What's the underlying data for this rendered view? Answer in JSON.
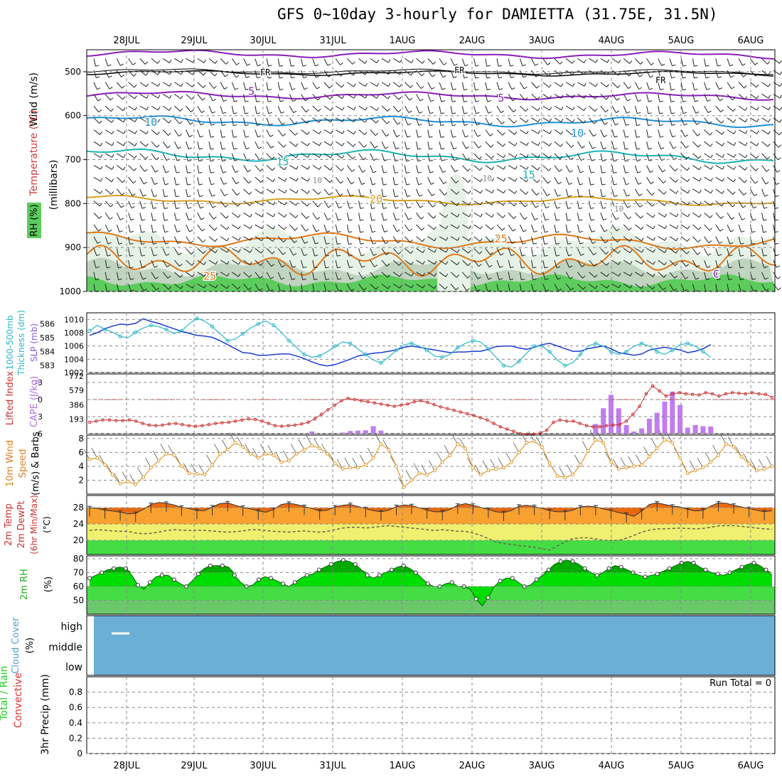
{
  "title": "GFS 0~10day 3-hourly for DAMIETTA (31.75E, 31.5N)",
  "date_labels": [
    "28JUL",
    "29JUL",
    "30JUL",
    "31JUL",
    "1AUG",
    "2AUG",
    "3AUG",
    "4AUG",
    "5AUG",
    "6AUG"
  ],
  "colors": {
    "fr_line": "#000000",
    "t5": "#8a1fb8",
    "t10": "#1e90d6",
    "t15": "#19b3b3",
    "t20": "#d9a020",
    "t25": "#e07818",
    "rh_light": "#e6f2e6",
    "rh_mid": "#c0d4c0",
    "rh_green": "#5ccc5c",
    "slp": "#1c3cd0",
    "thickness": "#2ab8c8",
    "lifted": "#cc3333",
    "cape": "#c07cf0",
    "wind": "#e09a30",
    "temp_fill": "#e86a10",
    "temp_band": "#f8a030",
    "dew_band": "#f0f070",
    "green_band": "#44dd44",
    "rh2m": "#00dd00",
    "cloud": "#6baed6"
  },
  "panels": {
    "upper_air": {
      "ylabels": [
        "Wind (m/s)",
        "Temperature (°C)",
        "RH (%)",
        "(millibars)"
      ],
      "yticks": [
        500,
        600,
        700,
        800,
        900,
        1000
      ],
      "ylim": [
        450,
        1000
      ],
      "contour_labels": [
        {
          "text": "FR",
          "date_idx": 2.0,
          "p": 500
        },
        {
          "text": "FR",
          "date_idx": 4.8,
          "p": 495
        },
        {
          "text": "FR",
          "date_idx": 7.7,
          "p": 518
        },
        {
          "text": "5",
          "date_idx": 1.8,
          "p": 545
        },
        {
          "text": "5",
          "date_idx": 5.4,
          "p": 560
        },
        {
          "text": "10",
          "date_idx": 0.35,
          "p": 615
        },
        {
          "text": "10",
          "date_idx": 6.5,
          "p": 640
        },
        {
          "text": "15",
          "date_idx": 2.25,
          "p": 705
        },
        {
          "text": "15",
          "date_idx": 5.8,
          "p": 735
        },
        {
          "text": "20",
          "date_idx": 3.6,
          "p": 790
        },
        {
          "text": "25",
          "date_idx": 5.4,
          "p": 880
        },
        {
          "text": "25",
          "date_idx": 1.2,
          "p": 965
        },
        {
          "text": "10",
          "date_idx": 2.75,
          "p": 745
        },
        {
          "text": "10",
          "date_idx": 5.2,
          "p": 740
        },
        {
          "text": "10",
          "date_idx": 7.1,
          "p": 810
        },
        {
          "text": "C",
          "date_idx": 8.5,
          "p": 960
        }
      ]
    },
    "slp": {
      "ylabels": [
        "1000-500mb",
        "Thickness (dm)",
        "SLP (mb)"
      ],
      "slp_ticks": [
        1002,
        1004,
        1006,
        1008,
        1010
      ],
      "thk_ticks": [
        583,
        584,
        585,
        586
      ],
      "slp_range": [
        1002,
        1011
      ],
      "thk_range": [
        582.5,
        586.8
      ]
    },
    "cape": {
      "ylabels": [
        "Lifted Index",
        "CAPE (J/kg)"
      ],
      "li_ticks": [
        "-3",
        "0",
        "3",
        "6"
      ],
      "cape_ticks": [
        "772",
        "579",
        "386",
        "193"
      ]
    },
    "wind": {
      "ylabels": [
        "10m Wind",
        "Speed",
        "(m/s) & Barbs"
      ],
      "yticks": [
        2,
        4,
        6,
        8
      ],
      "ylim": [
        0,
        8.5
      ]
    },
    "temp": {
      "ylabels": [
        "2m Temp",
        "2m DewPt",
        "(6hr Min/Max)",
        "(°C)"
      ],
      "yticks": [
        20,
        24,
        28
      ],
      "ylim": [
        16.5,
        31
      ]
    },
    "rh": {
      "ylabels": [
        "2m RH",
        "(%)"
      ],
      "yticks": [
        50,
        60,
        70,
        80
      ],
      "ylim": [
        40,
        82
      ]
    },
    "cloud": {
      "ylabels": [
        "Cloud Cover",
        "(%)"
      ],
      "levels": [
        "high",
        "middle",
        "low"
      ]
    },
    "precip": {
      "ylabels": [
        "Total / Rain",
        "Convective",
        "3hr Precip (mm)"
      ],
      "yticks": [
        "0",
        "0.2",
        "0.4",
        "0.6",
        "0.8"
      ],
      "run_total": "Run Total = 0"
    }
  },
  "chart_data": [
    {
      "type": "line",
      "title": "1000-500mb Thickness (dm) / SLP (mb)",
      "x_start": "27JUL 12Z",
      "x_step_hours": 3,
      "series": [
        {
          "name": "SLP (mb)",
          "values": [
            1007.6,
            1008.0,
            1008.6,
            1009.0,
            1009.3,
            1009.2,
            1009.4,
            1010.1,
            1009.7,
            1009.4,
            1009.0,
            1008.6,
            1008.2,
            1007.9,
            1007.6,
            1007.5,
            1007.3,
            1006.8,
            1006.2,
            1005.6,
            1005.0,
            1004.9,
            1004.6,
            1004.6,
            1004.7,
            1004.8,
            1004.8,
            1004.5,
            1004.1,
            1003.6,
            1003.2,
            1003.0,
            1003.2,
            1003.6,
            1004.0,
            1004.5,
            1004.7,
            1004.9,
            1005.0,
            1005.2,
            1005.4,
            1005.8,
            1006.0,
            1005.8,
            1005.6,
            1005.4,
            1005.2,
            1005.0,
            1005.1,
            1005.1,
            1005.2,
            1005.2,
            1005.5,
            1005.9,
            1006.0,
            1006.0,
            1005.7,
            1005.5,
            1005.8,
            1006.2,
            1006.4,
            1006.0,
            1005.6,
            1005.2,
            1005.2,
            1005.6,
            1005.8,
            1006.0,
            1005.6,
            1005.0,
            1004.8,
            1004.6,
            1004.8,
            1005.4,
            1005.6,
            1005.8,
            1005.6,
            1005.4,
            1005.0,
            1005.2,
            1005.6,
            1006.2
          ]
        },
        {
          "name": "1000-500mb Thickness (dm)",
          "values": [
            585.5,
            585.9,
            585.6,
            585.4,
            585.1,
            585.0,
            585.4,
            585.7,
            585.9,
            585.8,
            585.6,
            585.3,
            585.5,
            586.0,
            586.4,
            586.2,
            585.8,
            585.3,
            584.8,
            584.9,
            585.3,
            585.7,
            586.0,
            586.2,
            585.9,
            585.4,
            584.8,
            584.3,
            583.8,
            583.6,
            583.7,
            584.0,
            584.4,
            584.7,
            584.6,
            584.2,
            583.8,
            583.4,
            583.2,
            583.6,
            584.1,
            584.5,
            584.6,
            584.4,
            584.1,
            583.7,
            583.6,
            583.8,
            584.3,
            584.6,
            584.8,
            584.7,
            584.2,
            583.6,
            583.0,
            582.9,
            583.3,
            583.9,
            584.4,
            584.4,
            584.0,
            583.4,
            583.0,
            583.2,
            583.8,
            584.4,
            584.6,
            584.4,
            584.0,
            583.8,
            584.0,
            584.4,
            584.6,
            584.4,
            584.0,
            583.8,
            584.1,
            584.5,
            584.6,
            584.4,
            584.0,
            583.6
          ]
        }
      ]
    },
    {
      "type": "bar",
      "title": "Lifted Index / CAPE (J/kg)",
      "x_start": "27JUL 12Z",
      "x_step_hours": 3,
      "series": [
        {
          "name": "Lifted Index",
          "values": [
            4.0,
            3.8,
            3.6,
            3.6,
            3.7,
            3.7,
            3.6,
            3.8,
            4.2,
            4.5,
            4.6,
            4.5,
            4.3,
            4.2,
            4.4,
            4.6,
            4.7,
            4.6,
            4.4,
            4.2,
            4.1,
            4.0,
            3.8,
            3.6,
            3.4,
            3.5,
            3.8,
            4.2,
            4.6,
            4.7,
            4.6,
            4.5,
            4.3,
            4.0,
            3.4,
            2.6,
            1.8,
            1.0,
            0.2,
            -0.2,
            0.0,
            0.2,
            0.4,
            0.6,
            0.8,
            1.0,
            1.2,
            1.0,
            0.8,
            0.4,
            0.2,
            0.5,
            0.9,
            1.3,
            1.6,
            1.9,
            2.2,
            2.5,
            2.8,
            3.2,
            3.6,
            4.2,
            4.8,
            5.2,
            5.6,
            6.0,
            6.1,
            6.1,
            5.9,
            5.4,
            4.0,
            3.6,
            3.8,
            3.8,
            4.2,
            4.6,
            4.8,
            4.8,
            4.6,
            4.5,
            4.4,
            3.8,
            2.6,
            1.2,
            -1.0,
            -2.4,
            -1.5,
            -0.6,
            -1.0,
            -1.2,
            -1.0,
            -0.9,
            -0.8,
            -1.2,
            -1.0,
            -0.6,
            -1.0,
            -1.2,
            -1.1,
            -1.0,
            -1.2,
            -1.0,
            -0.9,
            -0.4
          ]
        },
        {
          "name": "CAPE (J/kg)",
          "bars": [
            {
              "idx": 29,
              "value": 30
            },
            {
              "idx": 33,
              "value": 15
            },
            {
              "idx": 34,
              "value": 35
            },
            {
              "idx": 35,
              "value": 40
            },
            {
              "idx": 36,
              "value": 45
            },
            {
              "idx": 37,
              "value": 100
            },
            {
              "idx": 38,
              "value": 40
            },
            {
              "idx": 66,
              "value": 130
            },
            {
              "idx": 67,
              "value": 340
            },
            {
              "idx": 68,
              "value": 520
            },
            {
              "idx": 69,
              "value": 340
            },
            {
              "idx": 70,
              "value": 115
            },
            {
              "idx": 71,
              "value": 30
            },
            {
              "idx": 72,
              "value": 70
            },
            {
              "idx": 73,
              "value": 200
            },
            {
              "idx": 74,
              "value": 280
            },
            {
              "idx": 75,
              "value": 430
            },
            {
              "idx": 76,
              "value": 565
            },
            {
              "idx": 77,
              "value": 385
            },
            {
              "idx": 78,
              "value": 80
            },
            {
              "idx": 79,
              "value": 115
            },
            {
              "idx": 80,
              "value": 100
            },
            {
              "idx": 81,
              "value": 95
            }
          ]
        }
      ]
    },
    {
      "type": "line",
      "title": "10m Wind Speed (m/s)",
      "x_start": "27JUL 12Z",
      "x_step_hours": 3,
      "series": [
        {
          "name": "Speed",
          "values": [
            5.0,
            5.2,
            4.2,
            2.8,
            1.5,
            1.8,
            1.4,
            2.4,
            3.8,
            4.8,
            5.8,
            5.6,
            4.0,
            3.0,
            2.9,
            2.8,
            4.2,
            5.8,
            6.4,
            7.4,
            6.8,
            5.8,
            5.2,
            5.8,
            5.6,
            4.6,
            4.8,
            5.8,
            6.4,
            7.0,
            6.6,
            5.8,
            4.4,
            3.6,
            3.8,
            3.8,
            4.2,
            5.2,
            7.2,
            6.4,
            4.0,
            1.0,
            2.0,
            3.0,
            2.8,
            3.4,
            4.6,
            5.6,
            7.2,
            6.6,
            3.8,
            2.8,
            3.4,
            3.6,
            3.8,
            4.6,
            6.0,
            7.4,
            7.6,
            6.8,
            4.4,
            2.6,
            2.4,
            2.8,
            4.2,
            6.2,
            7.8,
            7.4,
            4.6,
            3.6,
            3.8,
            4.0,
            4.2,
            5.4,
            6.6,
            7.8,
            7.4,
            5.2,
            3.0,
            3.4,
            3.8,
            4.6,
            5.6,
            7.2,
            6.8,
            5.4,
            4.4,
            3.4,
            3.6,
            4.0
          ]
        }
      ]
    },
    {
      "type": "area",
      "title": "2m Temp / 2m DewPt (°C)",
      "x_start": "27JUL 12Z",
      "x_step_hours": 3,
      "series": [
        {
          "name": "2m Temp",
          "values": [
            28.0,
            27.8,
            27.4,
            27.2,
            26.9,
            26.5,
            26.6,
            27.6,
            28.8,
            29.3,
            29.1,
            28.7,
            28.1,
            27.8,
            27.3,
            27.3,
            28.2,
            29.0,
            29.2,
            28.6,
            28.1,
            27.7,
            27.2,
            26.9,
            27.6,
            28.8,
            29.1,
            28.8,
            28.3,
            27.8,
            27.2,
            27.4,
            28.2,
            28.6,
            28.8,
            28.3,
            27.8,
            27.3,
            27.0,
            27.4,
            28.3,
            28.7,
            28.5,
            28.0,
            27.4,
            27.0,
            27.0,
            27.6,
            28.6,
            29.0,
            28.6,
            28.1,
            27.6,
            27.0,
            26.8,
            27.3,
            28.4,
            28.6,
            28.3,
            27.8,
            27.3,
            27.0,
            27.0,
            27.4,
            28.2,
            28.4,
            28.2,
            27.7,
            27.3,
            26.8,
            26.4,
            25.9,
            27.2,
            28.8,
            29.2,
            28.8,
            28.4,
            28.2,
            27.6,
            27.2,
            27.4,
            28.4,
            29.2,
            29.1,
            28.6,
            28.2,
            27.8,
            27.4,
            27.0,
            27.3
          ]
        },
        {
          "name": "2m DewPt",
          "values": [
            22.4,
            22.6,
            22.5,
            22.3,
            22.2,
            22.2,
            21.8,
            21.6,
            21.7,
            22.0,
            22.4,
            22.6,
            22.5,
            22.4,
            22.5,
            22.4,
            22.3,
            22.1,
            22.0,
            22.1,
            22.3,
            22.6,
            22.6,
            22.4,
            22.2,
            22.1,
            22.0,
            22.2,
            22.3,
            22.1,
            22.0,
            22.2,
            22.6,
            23.0,
            23.2,
            23.2,
            23.0,
            23.2,
            23.4,
            23.6,
            23.4,
            23.2,
            23.0,
            22.8,
            22.6,
            22.4,
            22.6,
            22.4,
            22.2,
            22.2,
            21.8,
            21.2,
            20.4,
            19.6,
            19.2,
            19.0,
            18.7,
            18.5,
            18.3,
            17.9,
            17.6,
            18.6,
            19.6,
            20.4,
            20.6,
            20.6,
            20.3,
            20.0,
            20.0,
            20.0,
            20.5,
            21.2,
            22.0,
            22.5,
            22.8,
            22.8,
            22.9,
            23.0,
            22.9,
            22.8,
            22.9,
            23.2,
            23.5,
            23.6,
            23.6,
            23.4,
            23.2,
            23.0,
            22.8,
            22.7
          ]
        }
      ]
    },
    {
      "type": "area",
      "title": "2m RH (%)",
      "x_start": "27JUL 12Z",
      "x_step_hours": 3,
      "series": [
        {
          "name": "2m RH",
          "values": [
            66,
            68,
            70,
            72,
            73,
            74,
            73,
            68,
            61,
            58,
            63,
            67,
            68,
            68,
            65,
            62,
            60,
            64,
            69,
            73,
            75,
            75,
            75,
            74,
            68,
            63,
            60,
            61,
            65,
            67,
            66,
            64,
            62,
            60,
            63,
            66,
            68,
            69,
            72,
            74,
            76,
            78,
            79,
            78,
            76,
            72,
            68,
            66,
            68,
            70,
            72,
            74,
            75,
            73,
            70,
            66,
            62,
            60,
            60,
            62,
            63,
            60,
            60,
            58,
            51,
            46,
            52,
            60,
            64,
            66,
            66,
            63,
            60,
            61,
            65,
            68,
            72,
            76,
            78,
            79,
            78,
            76,
            73,
            70,
            68,
            70,
            73,
            75,
            74,
            72,
            70,
            68,
            67,
            68,
            69,
            71,
            73,
            75,
            77,
            78,
            77,
            74,
            72,
            70,
            69,
            68,
            70,
            72,
            74,
            76,
            77,
            75,
            72,
            68
          ]
        }
      ]
    },
    {
      "type": "area",
      "title": "Cloud Cover (%)",
      "series": [
        {
          "name": "Cloud Cover",
          "values": []
        }
      ]
    },
    {
      "type": "bar",
      "title": "3hr Precip (mm)",
      "ylim": [
        0,
        1.0
      ],
      "series": [
        {
          "name": "Total / Rain",
          "values": []
        },
        {
          "name": "Convective",
          "values": []
        }
      ]
    }
  ]
}
